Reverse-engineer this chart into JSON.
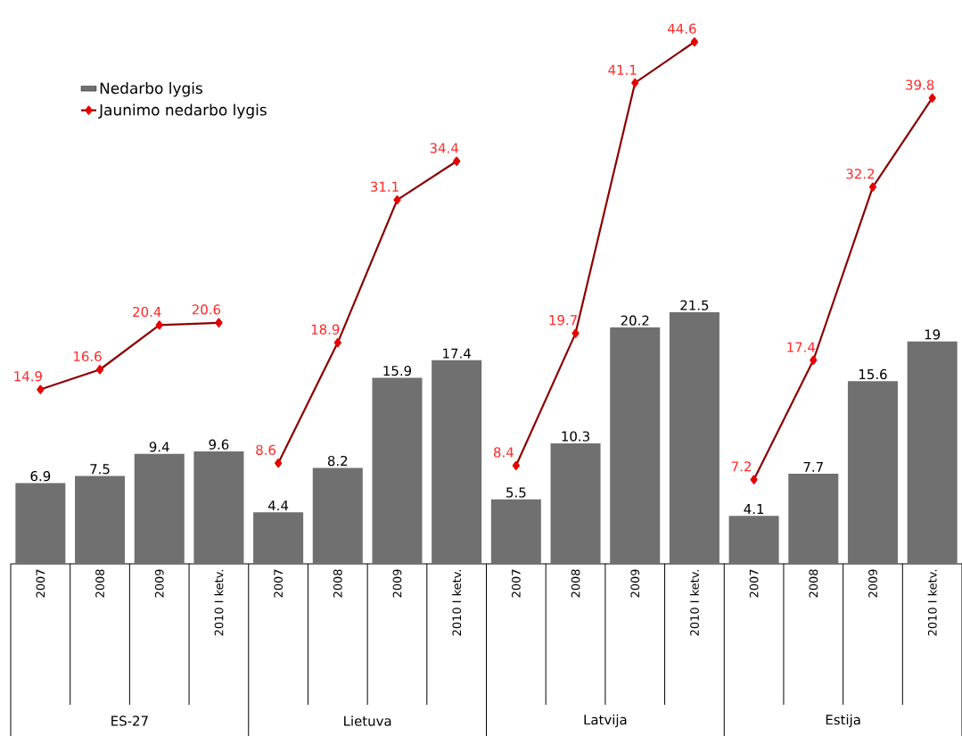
{
  "chart_data": {
    "type": "bar",
    "categories": [
      "2007",
      "2008",
      "2009",
      "2010 I ketv.",
      "2007",
      "2008",
      "2009",
      "2010 I ketv.",
      "2007",
      "2008",
      "2009",
      "2010 I ketv.",
      "2007",
      "2008",
      "2009",
      "2010 I ketv."
    ],
    "series": [
      {
        "name": "Nedarbo lygis",
        "color": "#707070",
        "values": [
          6.9,
          7.5,
          9.4,
          9.6,
          4.4,
          8.2,
          15.9,
          17.4,
          5.5,
          10.3,
          20.2,
          21.5,
          4.1,
          7.7,
          15.6,
          19
        ]
      },
      {
        "name": "Jaunimo nedarbo lygis",
        "type": "line",
        "color": "#8b0000",
        "values": [
          14.9,
          16.6,
          20.4,
          20.6,
          null,
          null,
          null,
          null,
          null,
          null,
          null,
          null,
          null,
          null,
          null,
          null
        ]
      },
      {
        "type": "line",
        "color": "#8b0000",
        "values": [
          null,
          null,
          null,
          null,
          8.6,
          18.9,
          31.1,
          34.4,
          null,
          null,
          null,
          null,
          null,
          null,
          null,
          null
        ]
      },
      {
        "type": "line",
        "color": "#8b0000",
        "values": [
          null,
          null,
          null,
          null,
          null,
          null,
          null,
          null,
          8.4,
          19.7,
          41.1,
          44.6,
          null,
          null,
          null,
          null
        ]
      },
      {
        "type": "line",
        "color": "#8b0000",
        "values": [
          null,
          null,
          null,
          null,
          null,
          null,
          null,
          null,
          null,
          null,
          null,
          null,
          7.2,
          17.4,
          32.2,
          39.8
        ]
      }
    ],
    "annotations": [
      "ES-27",
      "Lietuva",
      "Latvija",
      "Estija"
    ],
    "tick_labels": "x",
    "data_labels": true,
    "marker": "diamond",
    "legend": "top left",
    "grid": false
  }
}
